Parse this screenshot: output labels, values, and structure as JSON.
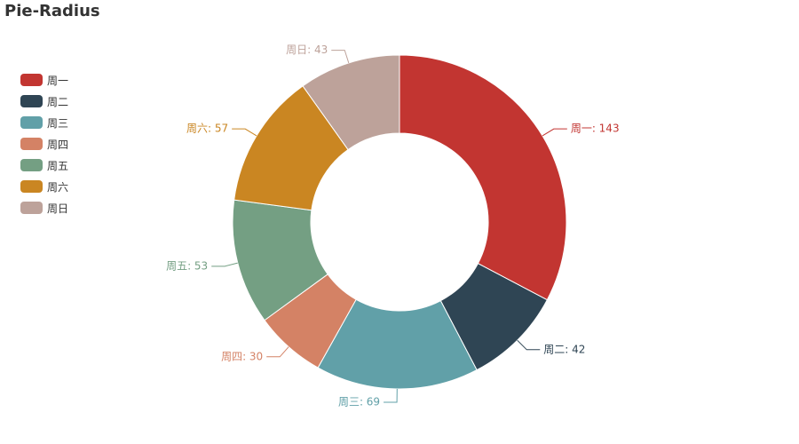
{
  "page": {
    "title": "Pie-Radius"
  },
  "chart_data": {
    "type": "pie",
    "title": "Pie-Radius",
    "donut": true,
    "legend_position": "top-left",
    "categories": [
      "周一",
      "周二",
      "周三",
      "周四",
      "周五",
      "周六",
      "周日"
    ],
    "values": [
      143,
      42,
      69,
      30,
      53,
      57,
      43
    ],
    "colors": [
      "#c23531",
      "#2f4554",
      "#61a0a8",
      "#d48265",
      "#749f83",
      "#ca8622",
      "#bda29a"
    ],
    "labels": [
      "周一: 143",
      "周二: 42",
      "周三: 69",
      "周四: 30",
      "周五: 53",
      "周六: 57",
      "周日: 43"
    ]
  }
}
